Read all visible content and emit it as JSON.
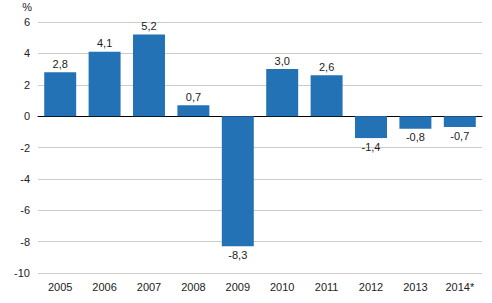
{
  "chart_data": {
    "type": "bar",
    "ylabel": "%",
    "categories": [
      "2005",
      "2006",
      "2007",
      "2008",
      "2009",
      "2010",
      "2011",
      "2012",
      "2013",
      "2014*"
    ],
    "values": [
      2.8,
      4.1,
      5.2,
      0.7,
      -8.3,
      3.0,
      2.6,
      -1.4,
      -0.8,
      -0.7
    ],
    "value_labels": [
      "2,8",
      "4,1",
      "5,2",
      "0,7",
      "-8,3",
      "3,0",
      "2,6",
      "-1,4",
      "-0,8",
      "-0,7"
    ],
    "color": "#2372b5",
    "ylim": [
      -10,
      6
    ],
    "yticks": [
      -10,
      -8,
      -6,
      -4,
      -2,
      0,
      2,
      4,
      6
    ],
    "grid": true,
    "data_labels": true
  }
}
